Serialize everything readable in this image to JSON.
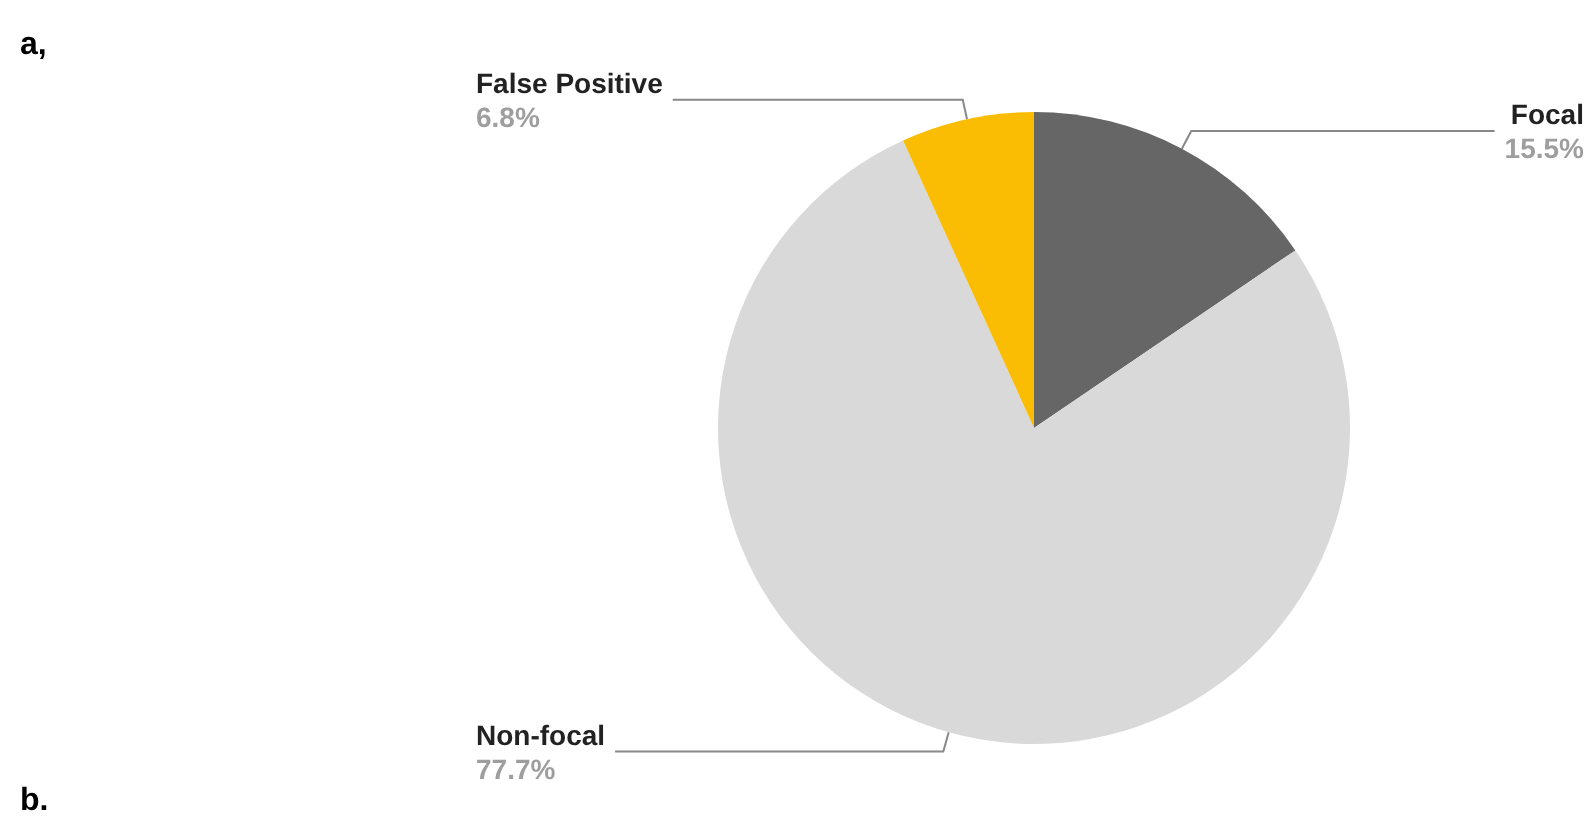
{
  "chart_data": {
    "type": "pie",
    "annotations": [
      "a,",
      "b."
    ],
    "categories": [
      "Focal",
      "Non-focal",
      "False Positive"
    ],
    "values": [
      15.5,
      77.7,
      6.8
    ],
    "value_labels": [
      "15.5%",
      "77.7%",
      "6.8%"
    ],
    "colors": [
      "#666666",
      "#d9d9d9",
      "#fbbc04"
    ],
    "legend": false
  }
}
